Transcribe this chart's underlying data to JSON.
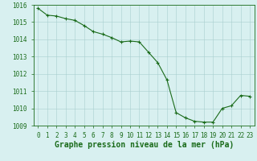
{
  "x": [
    0,
    1,
    2,
    3,
    4,
    5,
    6,
    7,
    8,
    9,
    10,
    11,
    12,
    13,
    14,
    15,
    16,
    17,
    18,
    19,
    20,
    21,
    22,
    23
  ],
  "y": [
    1015.8,
    1015.4,
    1015.35,
    1015.2,
    1015.1,
    1014.8,
    1014.45,
    1014.3,
    1014.1,
    1013.85,
    1013.9,
    1013.85,
    1013.25,
    1012.65,
    1011.65,
    1009.75,
    1009.45,
    1009.25,
    1009.2,
    1009.2,
    1010.0,
    1010.15,
    1010.75,
    1010.7
  ],
  "line_color": "#1a6b1a",
  "marker_color": "#1a6b1a",
  "bg_color": "#d8f0f0",
  "grid_color": "#a8cece",
  "title": "Graphe pression niveau de la mer (hPa)",
  "ylim": [
    1009.0,
    1016.0
  ],
  "xlim_min": -0.5,
  "xlim_max": 23.5,
  "yticks": [
    1009,
    1010,
    1011,
    1012,
    1013,
    1014,
    1015,
    1016
  ],
  "xticks": [
    0,
    1,
    2,
    3,
    4,
    5,
    6,
    7,
    8,
    9,
    10,
    11,
    12,
    13,
    14,
    15,
    16,
    17,
    18,
    19,
    20,
    21,
    22,
    23
  ],
  "tick_color": "#1a6b1a",
  "tick_label_size": 5.5,
  "title_size": 7.0,
  "line_width": 0.8,
  "marker_size": 3.5,
  "grid_linewidth": 0.4
}
